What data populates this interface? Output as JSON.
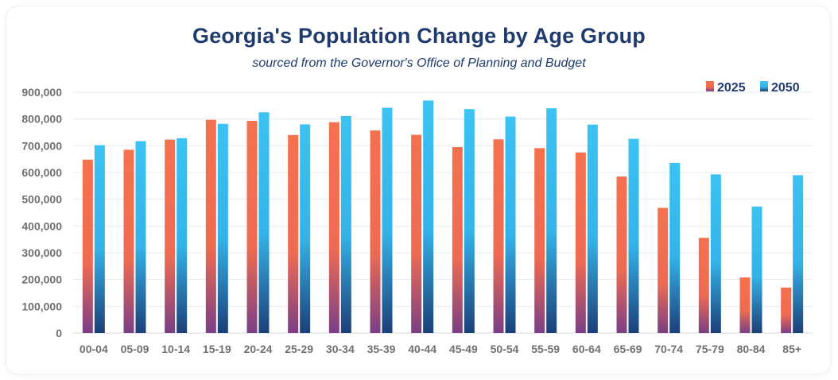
{
  "chart_data": {
    "type": "bar",
    "title": "Georgia's Population Change by Age Group",
    "subtitle": "sourced from the Governor's Office of Planning and Budget",
    "xlabel": "",
    "ylabel": "",
    "ylim": [
      0,
      900000
    ],
    "yticks": [
      0,
      100000,
      200000,
      300000,
      400000,
      500000,
      600000,
      700000,
      800000,
      900000
    ],
    "ytick_labels": [
      "0",
      "100,000",
      "200,000",
      "300,000",
      "400,000",
      "500,000",
      "600,000",
      "700,000",
      "800,000",
      "900,000"
    ],
    "grid": true,
    "legend_position": "top-right",
    "categories": [
      "00-04",
      "05-09",
      "10-14",
      "15-19",
      "20-24",
      "25-29",
      "30-34",
      "35-39",
      "40-44",
      "45-49",
      "50-54",
      "55-59",
      "60-64",
      "65-69",
      "70-74",
      "75-79",
      "80-84",
      "85+"
    ],
    "series": [
      {
        "name": "2025",
        "color": "#f4714f",
        "values": [
          648000,
          685000,
          723000,
          797000,
          793000,
          740000,
          788000,
          757000,
          741000,
          695000,
          724000,
          691000,
          675000,
          585000,
          468000,
          356000,
          208000,
          170000
        ]
      },
      {
        "name": "2050",
        "color": "#38bdf0",
        "values": [
          702000,
          717000,
          728000,
          782000,
          825000,
          780000,
          811000,
          842000,
          869000,
          837000,
          809000,
          840000,
          779000,
          726000,
          636000,
          593000,
          473000,
          590000
        ]
      }
    ]
  }
}
